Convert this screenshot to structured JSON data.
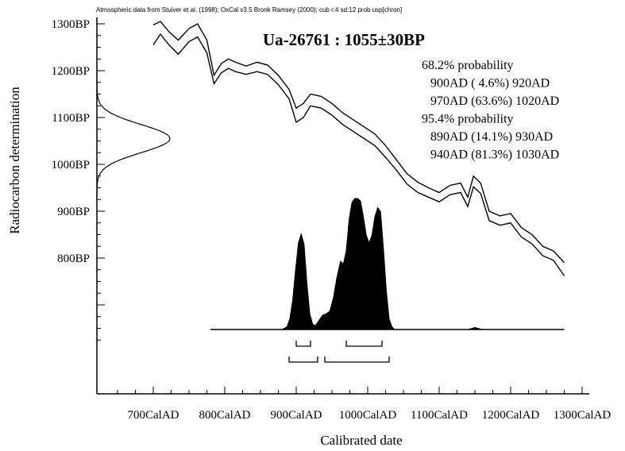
{
  "chart_data": {
    "type": "area",
    "header_note": "Atmospheric data from Stuiver et al. (1998); OxCal v3.5 Bronk Ramsey (2000); cub r:4 sd:12 prob usp[chron]",
    "title": "Ua-26761 : 1055±30BP",
    "xlabel": "Calibrated date",
    "ylabel": "Radiocarbon determination",
    "xlim": [
      630,
      1350
    ],
    "ylim": [
      560,
      1310
    ],
    "x_tick_labels": [
      {
        "value": 700,
        "label": "700CalAD"
      },
      {
        "value": 800,
        "label": "800CalAD"
      },
      {
        "value": 900,
        "label": "900CalAD"
      },
      {
        "value": 1000,
        "label": "1000CalAD"
      },
      {
        "value": 1100,
        "label": "1100CalAD"
      },
      {
        "value": 1200,
        "label": "1200CalAD"
      },
      {
        "value": 1300,
        "label": "1300CalAD"
      }
    ],
    "y_tick_labels": [
      {
        "value": 800,
        "label": "800BP"
      },
      {
        "value": 900,
        "label": "900BP"
      },
      {
        "value": 1000,
        "label": "1000BP"
      },
      {
        "value": 1100,
        "label": "1100BP"
      },
      {
        "value": 1200,
        "label": "1200BP"
      },
      {
        "value": 1300,
        "label": "1300BP"
      }
    ],
    "probability_text": [
      "68.2% probability",
      "900AD ( 4.6%) 920AD",
      "970AD (63.6%) 1020AD",
      "95.4% probability",
      "890AD (14.1%) 930AD",
      "940AD (81.3%) 1030AD"
    ],
    "radiocarbon_date": {
      "mean": 1055,
      "sigma": 30
    },
    "calibration_curve": {
      "x": [
        700,
        710,
        722,
        735,
        750,
        762,
        775,
        785,
        795,
        805,
        815,
        830,
        845,
        860,
        875,
        890,
        900,
        910,
        920,
        935,
        950,
        965,
        980,
        995,
        1010,
        1025,
        1040,
        1055,
        1070,
        1085,
        1100,
        1115,
        1130,
        1140,
        1148,
        1158,
        1170,
        1185,
        1200,
        1215,
        1230,
        1245,
        1260,
        1275
      ],
      "upper": [
        1298,
        1305,
        1283,
        1265,
        1290,
        1300,
        1265,
        1190,
        1215,
        1225,
        1218,
        1210,
        1218,
        1212,
        1190,
        1160,
        1120,
        1130,
        1150,
        1145,
        1130,
        1110,
        1095,
        1080,
        1065,
        1040,
        1010,
        980,
        962,
        950,
        940,
        955,
        960,
        930,
        975,
        960,
        900,
        890,
        895,
        865,
        850,
        825,
        815,
        790
      ],
      "lower": [
        1255,
        1278,
        1255,
        1235,
        1262,
        1272,
        1238,
        1172,
        1195,
        1205,
        1198,
        1192,
        1198,
        1192,
        1170,
        1140,
        1090,
        1100,
        1125,
        1120,
        1105,
        1085,
        1070,
        1055,
        1040,
        1015,
        988,
        958,
        940,
        930,
        920,
        935,
        940,
        910,
        952,
        938,
        880,
        870,
        875,
        845,
        830,
        805,
        795,
        762
      ]
    },
    "probability_distribution": {
      "x": [
        780,
        860,
        880,
        887,
        891,
        895,
        899,
        903,
        907,
        911,
        915,
        919,
        923,
        927,
        932,
        937,
        942,
        947,
        952,
        957,
        962,
        966,
        970,
        974,
        978,
        982,
        986,
        990,
        994,
        998,
        1002,
        1006,
        1010,
        1014,
        1018,
        1022,
        1026,
        1030,
        1034,
        1038,
        1060,
        1140,
        1150,
        1160,
        1275
      ],
      "density": [
        0,
        0,
        0,
        0.02,
        0.08,
        0.22,
        0.45,
        0.66,
        0.73,
        0.65,
        0.35,
        0.12,
        0.04,
        0.03,
        0.07,
        0.11,
        0.12,
        0.14,
        0.24,
        0.4,
        0.52,
        0.5,
        0.6,
        0.84,
        0.97,
        1.0,
        1.0,
        0.98,
        0.86,
        0.72,
        0.66,
        0.72,
        0.86,
        0.93,
        0.9,
        0.62,
        0.3,
        0.08,
        0.02,
        0,
        0,
        0,
        0.015,
        0,
        0
      ]
    },
    "range_brackets": [
      {
        "level": "68.2%",
        "start": 900,
        "end": 920
      },
      {
        "level": "68.2%",
        "start": 970,
        "end": 1020
      },
      {
        "level": "95.4%",
        "start": 890,
        "end": 930
      },
      {
        "level": "95.4%",
        "start": 940,
        "end": 1030
      }
    ],
    "grid": false,
    "legend": "none"
  }
}
